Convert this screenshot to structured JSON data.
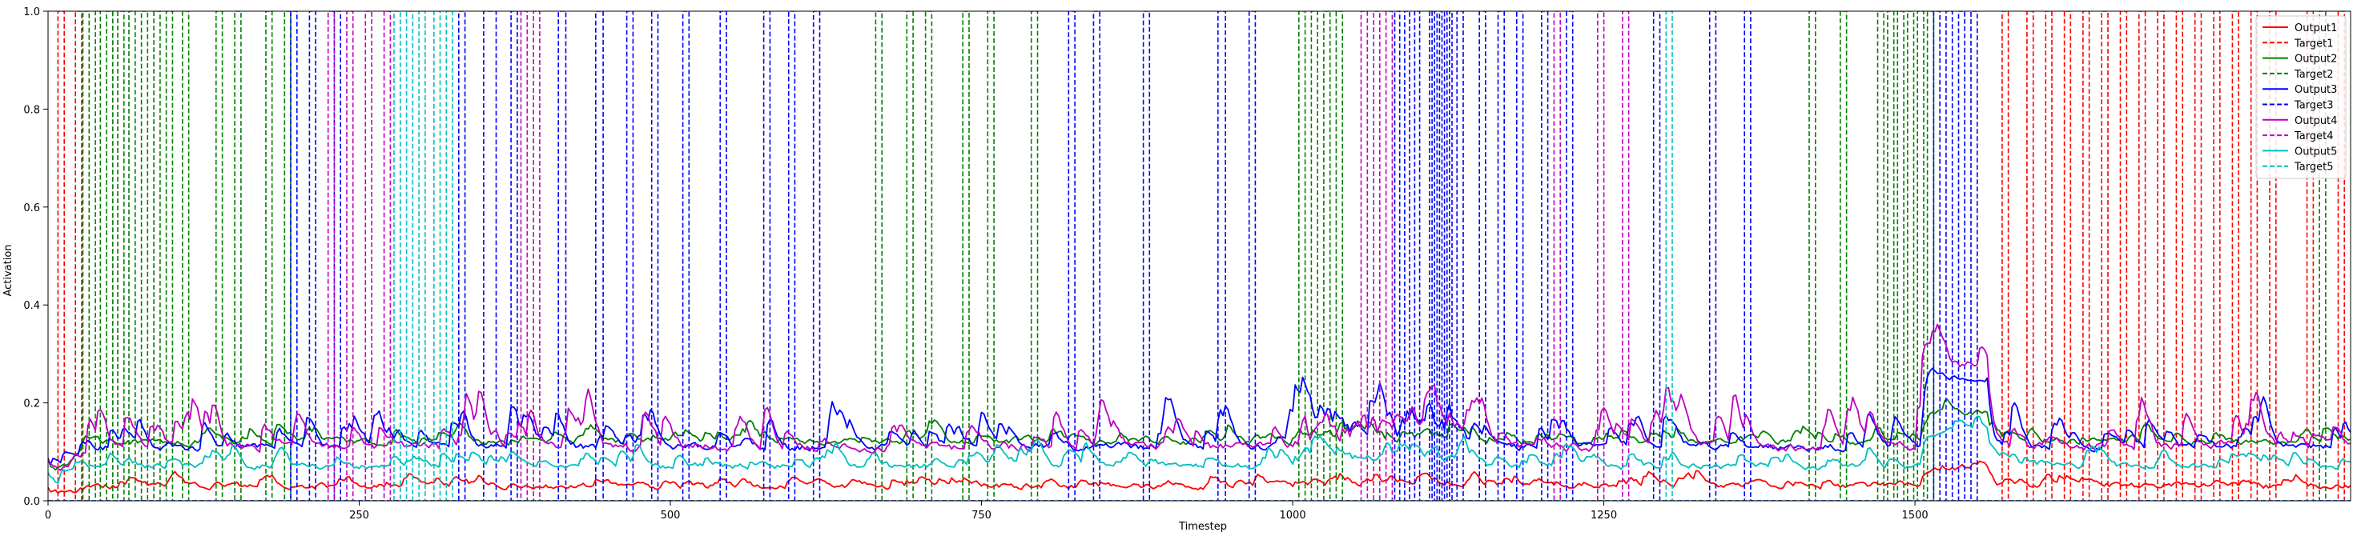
{
  "chart_data": {
    "type": "line",
    "title": "",
    "xlabel": "Timestep",
    "ylabel": "Activation",
    "xlim": [
      0,
      1850
    ],
    "ylim": [
      0,
      1.0
    ],
    "xticks": [
      0,
      250,
      500,
      750,
      1000,
      1250,
      1500
    ],
    "yticks": [
      0.0,
      0.2,
      0.4,
      0.6,
      0.8,
      1.0
    ],
    "xtick_labels": [
      "0",
      "250",
      "500",
      "750",
      "1000",
      "1250",
      "1500"
    ],
    "ytick_labels": [
      "0.0",
      "0.2",
      "0.4",
      "0.6",
      "0.8",
      "1.0"
    ],
    "grid": false,
    "legend_position": "top-right",
    "series": [
      {
        "name": "Output1",
        "role": "output",
        "color": "#ff0000",
        "style": "solid",
        "base": 0.03,
        "noise": 0.012,
        "spike": 0.03
      },
      {
        "name": "Target1",
        "role": "target",
        "color": "#ff0000",
        "style": "dashed",
        "pulses": [
          [
            8,
            13
          ],
          [
            22,
            27
          ],
          [
            1570,
            1575
          ],
          [
            1590,
            1595
          ],
          [
            1605,
            1610
          ],
          [
            1620,
            1625
          ],
          [
            1635,
            1640
          ],
          [
            1650,
            1655
          ],
          [
            1665,
            1670
          ],
          [
            1680,
            1685
          ],
          [
            1695,
            1700
          ],
          [
            1710,
            1715
          ],
          [
            1725,
            1730
          ],
          [
            1740,
            1745
          ],
          [
            1755,
            1760
          ],
          [
            1770,
            1775
          ],
          [
            1785,
            1790
          ],
          [
            1815,
            1820
          ],
          [
            1840,
            1845
          ]
        ]
      },
      {
        "name": "Output2",
        "role": "output",
        "color": "#008000",
        "style": "solid",
        "base": 0.12,
        "noise": 0.012,
        "spike": 0.05
      },
      {
        "name": "Target2",
        "role": "target",
        "color": "#008000",
        "style": "dashed",
        "pulses": [
          [
            28,
            33
          ],
          [
            38,
            42
          ],
          [
            47,
            52
          ],
          [
            56,
            61
          ],
          [
            65,
            70
          ],
          [
            75,
            80
          ],
          [
            85,
            90
          ],
          [
            95,
            100
          ],
          [
            108,
            113
          ],
          [
            135,
            140
          ],
          [
            150,
            155
          ],
          [
            175,
            180
          ],
          [
            190,
            195
          ],
          [
            665,
            670
          ],
          [
            690,
            695
          ],
          [
            705,
            710
          ],
          [
            735,
            740
          ],
          [
            755,
            760
          ],
          [
            790,
            795
          ],
          [
            1005,
            1010
          ],
          [
            1015,
            1020
          ],
          [
            1025,
            1030
          ],
          [
            1035,
            1040
          ],
          [
            1415,
            1420
          ],
          [
            1440,
            1445
          ],
          [
            1470,
            1475
          ],
          [
            1478,
            1483
          ],
          [
            1486,
            1491
          ],
          [
            1494,
            1499
          ],
          [
            1502,
            1507
          ],
          [
            1510,
            1515
          ],
          [
            1825,
            1830
          ]
        ]
      },
      {
        "name": "Output3",
        "role": "output",
        "color": "#0000ff",
        "style": "solid",
        "base": 0.11,
        "noise": 0.015,
        "spike": 0.12
      },
      {
        "name": "Target3",
        "role": "target",
        "color": "#0000ff",
        "style": "dashed",
        "pulses": [
          [
            195,
            200
          ],
          [
            210,
            215
          ],
          [
            230,
            235
          ],
          [
            330,
            335
          ],
          [
            350,
            360
          ],
          [
            372,
            377
          ],
          [
            410,
            416
          ],
          [
            440,
            446
          ],
          [
            465,
            470
          ],
          [
            485,
            490
          ],
          [
            510,
            515
          ],
          [
            540,
            545
          ],
          [
            575,
            580
          ],
          [
            595,
            600
          ],
          [
            615,
            620
          ],
          [
            820,
            825
          ],
          [
            840,
            845
          ],
          [
            880,
            885
          ],
          [
            940,
            946
          ],
          [
            965,
            970
          ],
          [
            1082,
            1086
          ],
          [
            1090,
            1094
          ],
          [
            1098,
            1102
          ],
          [
            1110,
            1112
          ],
          [
            1114,
            1116
          ],
          [
            1118,
            1120
          ],
          [
            1122,
            1124
          ],
          [
            1126,
            1128
          ],
          [
            1132,
            1137
          ],
          [
            1150,
            1155
          ],
          [
            1165,
            1170
          ],
          [
            1180,
            1185
          ],
          [
            1200,
            1205
          ],
          [
            1220,
            1225
          ],
          [
            1290,
            1295
          ],
          [
            1335,
            1340
          ],
          [
            1363,
            1368
          ],
          [
            1515,
            1520
          ],
          [
            1525,
            1530
          ],
          [
            1535,
            1540
          ],
          [
            1545,
            1550
          ]
        ]
      },
      {
        "name": "Output4",
        "role": "output",
        "color": "#bf00bf",
        "style": "solid",
        "base": 0.11,
        "noise": 0.018,
        "spike": 0.14
      },
      {
        "name": "Target4",
        "role": "target",
        "color": "#bf00bf",
        "style": "dashed",
        "pulses": [
          [
            225,
            230
          ],
          [
            240,
            245
          ],
          [
            255,
            260
          ],
          [
            270,
            275
          ],
          [
            380,
            385
          ],
          [
            390,
            395
          ],
          [
            1055,
            1060
          ],
          [
            1065,
            1070
          ],
          [
            1075,
            1080
          ],
          [
            1210,
            1215
          ],
          [
            1245,
            1250
          ],
          [
            1265,
            1270
          ]
        ]
      },
      {
        "name": "Output5",
        "role": "output",
        "color": "#00bfbf",
        "style": "solid",
        "base": 0.07,
        "noise": 0.012,
        "spike": 0.06
      },
      {
        "name": "Target5",
        "role": "target",
        "color": "#00bfbf",
        "style": "dashed",
        "pulses": [
          [
            278,
            283
          ],
          [
            288,
            293
          ],
          [
            298,
            303
          ],
          [
            310,
            315
          ],
          [
            320,
            325
          ],
          [
            1300,
            1305
          ]
        ]
      }
    ]
  }
}
